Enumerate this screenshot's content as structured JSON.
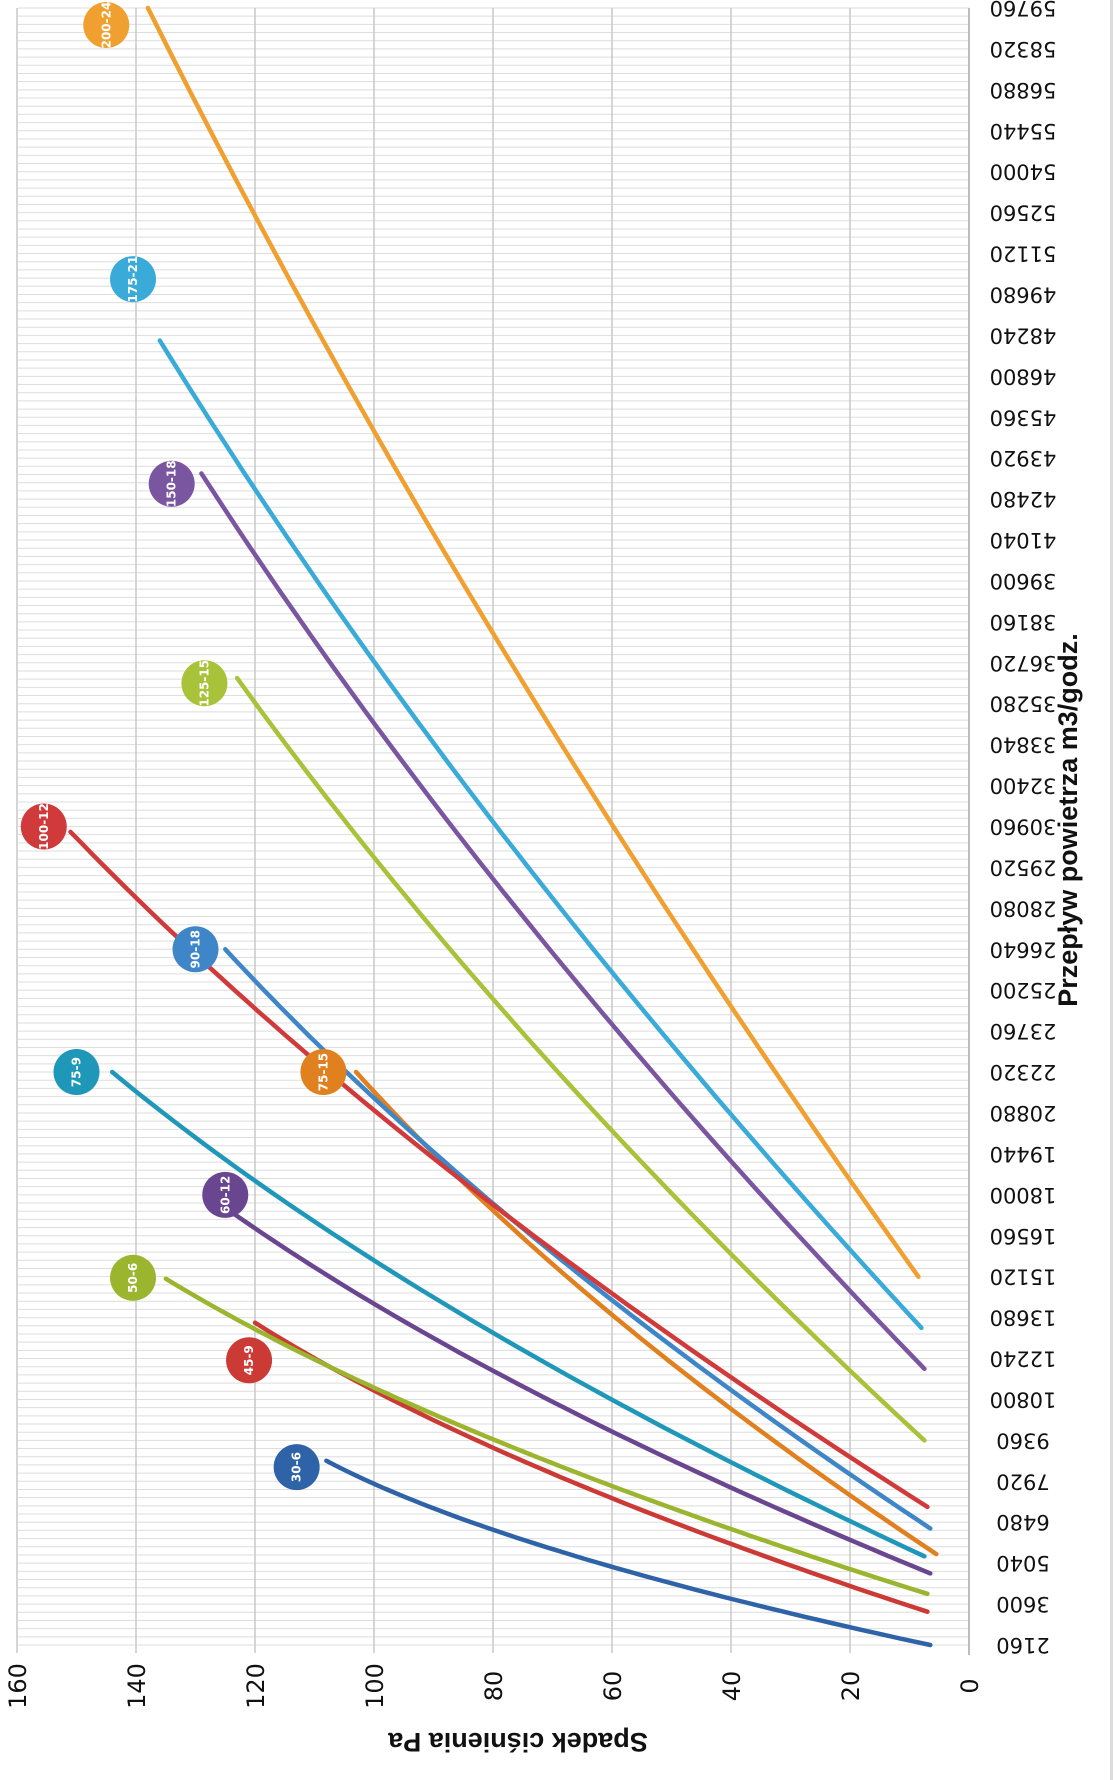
{
  "chart_data": {
    "type": "line",
    "xlabel": "Przepływ powietrza m3/godz.",
    "ylabel": "Spadek ciśnienia Pa",
    "x_ticks": [
      2160,
      3600,
      5040,
      6480,
      7920,
      9360,
      10800,
      12240,
      13680,
      15120,
      16560,
      18000,
      19440,
      20880,
      22320,
      23760,
      25200,
      26640,
      28080,
      29520,
      30960,
      32400,
      33840,
      35280,
      36720,
      38160,
      39600,
      41040,
      42480,
      43920,
      45360,
      46800,
      48240,
      49680,
      51120,
      52560,
      54000,
      55440,
      56880,
      58320,
      59760
    ],
    "y_ticks": [
      0,
      20,
      40,
      60,
      80,
      100,
      120,
      140,
      160
    ],
    "xlim": [
      2160,
      59760
    ],
    "ylim": [
      0,
      160
    ],
    "grid": true,
    "series": [
      {
        "name": "30-6",
        "color": "#2f63a8",
        "x": [
          2160,
          8640
        ],
        "y": [
          6.5,
          108
        ],
        "curv": 0.42
      },
      {
        "name": "45-9",
        "color": "#cc3a35",
        "x": [
          3330,
          13500
        ],
        "y": [
          7.0,
          120
        ],
        "curv": 0.32
      },
      {
        "name": "50-6",
        "color": "#9bb52f",
        "x": [
          3960,
          15050
        ],
        "y": [
          7.0,
          135
        ],
        "curv": 0.32
      },
      {
        "name": "60-12",
        "color": "#6a4590",
        "x": [
          4680,
          18000
        ],
        "y": [
          6.5,
          128
        ],
        "curv": 0.28
      },
      {
        "name": "75-9",
        "color": "#1f97b8",
        "x": [
          5280,
          22320
        ],
        "y": [
          7.5,
          144
        ],
        "curv": 0.28
      },
      {
        "name": "75-15",
        "color": "#e0801f",
        "x": [
          5360,
          22320
        ],
        "y": [
          5.5,
          103
        ],
        "curv": 0.25
      },
      {
        "name": "90-18",
        "color": "#3f86c9",
        "x": [
          6260,
          26640
        ],
        "y": [
          6.5,
          125
        ],
        "curv": 0.24
      },
      {
        "name": "100-12",
        "color": "#d13a3a",
        "x": [
          7020,
          30770
        ],
        "y": [
          7.0,
          151
        ],
        "curv": 0.24
      },
      {
        "name": "125-15",
        "color": "#a8c23a",
        "x": [
          9360,
          36180
        ],
        "y": [
          7.5,
          123
        ],
        "curv": 0.2
      },
      {
        "name": "150-18",
        "color": "#7b56a0",
        "x": [
          11880,
          43380
        ],
        "y": [
          7.5,
          129
        ],
        "curv": 0.2
      },
      {
        "name": "175-21",
        "color": "#3aaad8",
        "x": [
          13320,
          48060
        ],
        "y": [
          8.0,
          136
        ],
        "curv": 0.2
      },
      {
        "name": "200-24",
        "color": "#f0a030",
        "x": [
          15120,
          59760
        ],
        "y": [
          8.5,
          138
        ],
        "curv": 0.18
      }
    ],
    "labels": [
      {
        "text": "30-6",
        "x": 8420,
        "y": 113
      },
      {
        "text": "45-9",
        "x": 12180,
        "y": 121
      },
      {
        "text": "50-6",
        "x": 15080,
        "y": 140.5
      },
      {
        "text": "60-12",
        "x": 18000,
        "y": 125
      },
      {
        "text": "75-9",
        "x": 22320,
        "y": 150
      },
      {
        "text": "75-15",
        "x": 22320,
        "y": 108.5
      },
      {
        "text": "90-18",
        "x": 26640,
        "y": 130
      },
      {
        "text": "100-12",
        "x": 30960,
        "y": 155.5
      },
      {
        "text": "125-15",
        "x": 36000,
        "y": 128.5
      },
      {
        "text": "150-18",
        "x": 43020,
        "y": 134
      },
      {
        "text": "175-21",
        "x": 50220,
        "y": 140.5
      },
      {
        "text": "200-24",
        "x": 59160,
        "y": 145
      }
    ]
  }
}
